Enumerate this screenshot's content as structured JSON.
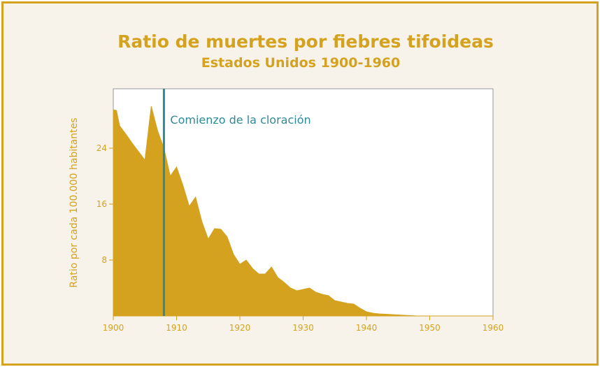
{
  "chart_data": {
    "type": "area",
    "title": "Ratio de muertes por fiebres tifoideas",
    "subtitle": "Estados Unidos 1900-1960",
    "xlabel": "",
    "ylabel": "Ratio por cada 100.000 habitantes",
    "xlim": [
      1900,
      1960
    ],
    "ylim": [
      0,
      32.5
    ],
    "x_ticks": [
      1900,
      1910,
      1920,
      1930,
      1940,
      1950,
      1960
    ],
    "y_ticks": [
      8,
      16,
      24
    ],
    "grid": false,
    "fill_color": "#d4a21f",
    "series": [
      {
        "x": [
          1900,
          1900.5,
          1901,
          1902,
          1903,
          1904,
          1905,
          1906,
          1907,
          1908,
          1909,
          1910,
          1911,
          1912,
          1913,
          1914,
          1915,
          1916,
          1917,
          1918,
          1919,
          1920,
          1921,
          1922,
          1923,
          1924,
          1925,
          1926,
          1927,
          1928,
          1929,
          1930,
          1931,
          1932,
          1933,
          1934,
          1935,
          1936,
          1937,
          1938,
          1939,
          1940,
          1941,
          1942,
          1944,
          1946,
          1948,
          1950,
          1955,
          1960
        ],
        "y": [
          29.5,
          29.4,
          27.2,
          26,
          24.7,
          23.5,
          22.3,
          30,
          26.5,
          24,
          20,
          21.3,
          18.7,
          15.7,
          17,
          13.5,
          11,
          12.5,
          12.4,
          11.3,
          8.8,
          7.4,
          8,
          6.8,
          6,
          6,
          7,
          5.5,
          4.8,
          4,
          3.6,
          3.8,
          4,
          3.4,
          3.1,
          2.9,
          2.2,
          2,
          1.8,
          1.7,
          1.1,
          0.6,
          0.4,
          0.3,
          0.2,
          0.1,
          0,
          0,
          0,
          0
        ]
      }
    ],
    "annotations": [
      {
        "x": 1908,
        "label": "Comienzo de la cloración",
        "color": "#2e8a96"
      }
    ]
  }
}
